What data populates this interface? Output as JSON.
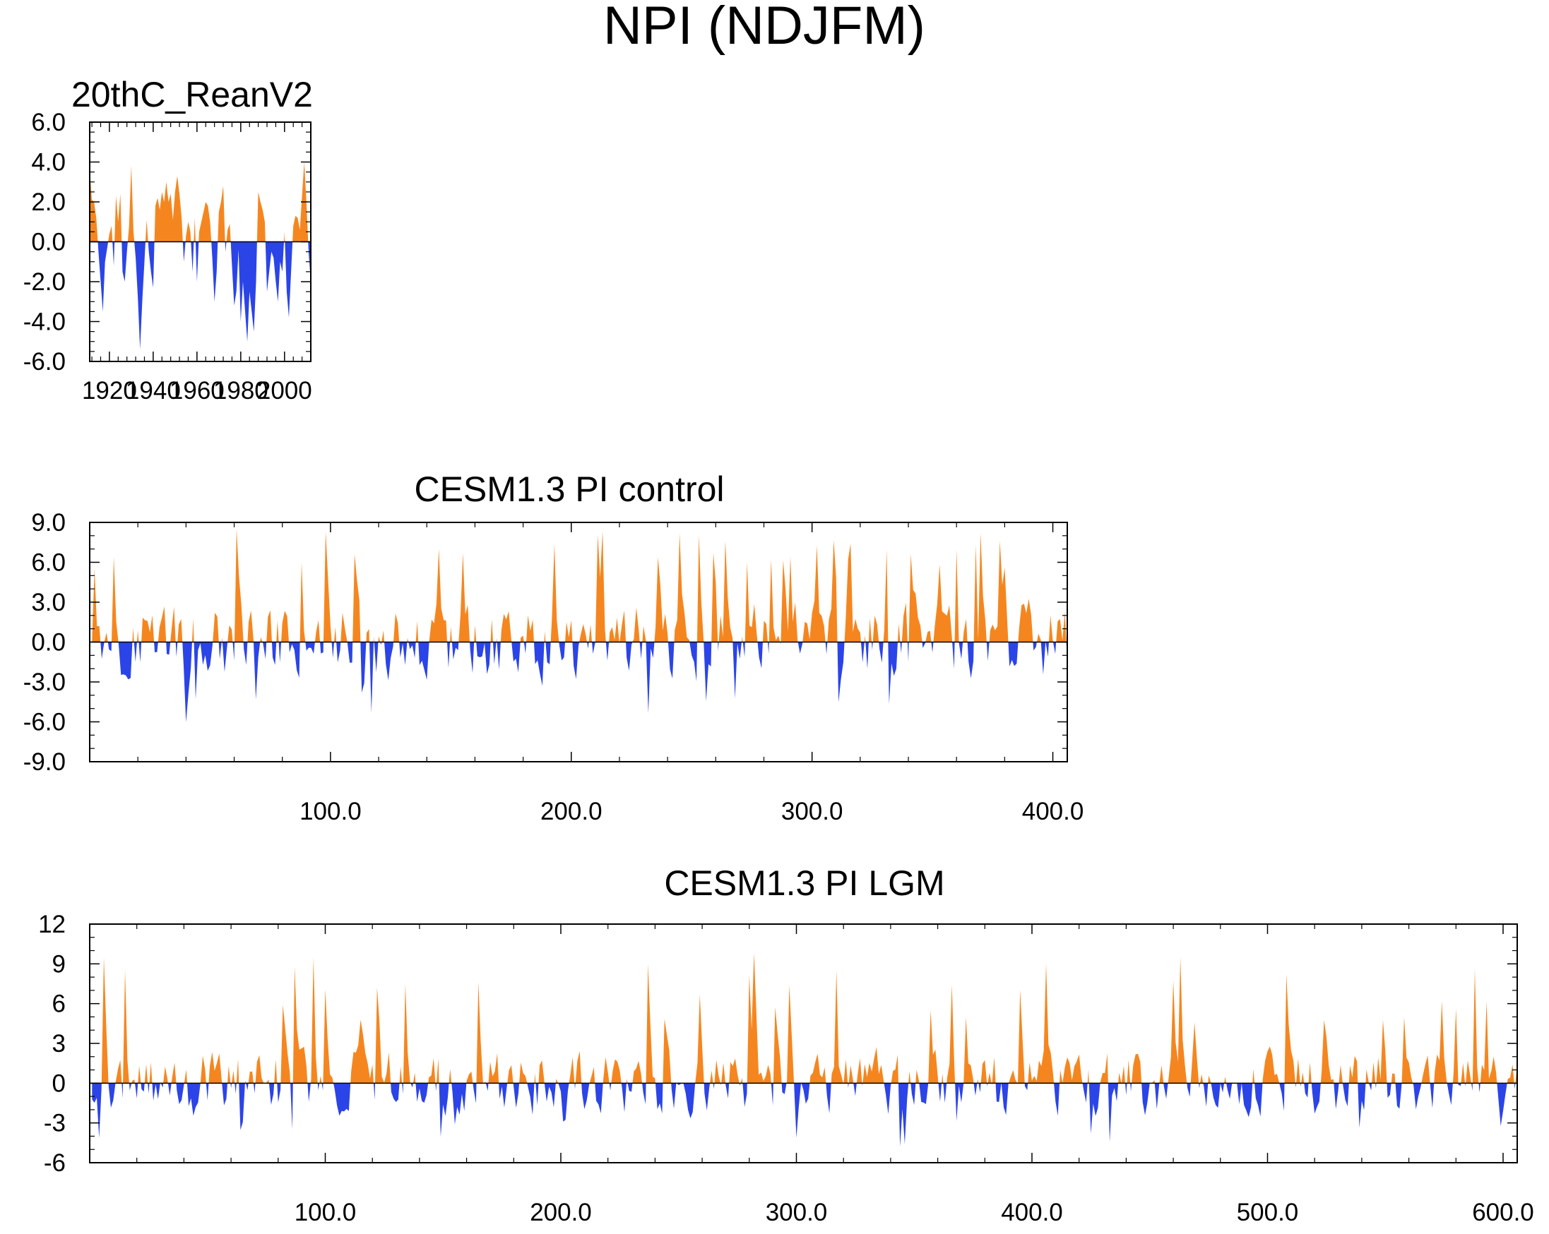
{
  "figure_title": "NPI (NDJFM)",
  "colors": {
    "positive": "#f5861f",
    "negative": "#2b44e8",
    "axis": "#000000",
    "background": "#ffffff"
  },
  "chart_data": [
    {
      "type": "area",
      "title": "20thC_ReanV2",
      "xlabel": "",
      "ylabel": "",
      "x_range": [
        1911,
        2012
      ],
      "y_range": [
        -6,
        6
      ],
      "y_ticks": [
        -6,
        -4,
        -2,
        0,
        2,
        4,
        6
      ],
      "y_tick_labels": [
        "-6.0",
        "-4.0",
        "-2.0",
        "0.0",
        "2.0",
        "4.0",
        "6.0"
      ],
      "x_ticks": [
        1920,
        1940,
        1960,
        1980,
        2000
      ],
      "x_tick_labels": [
        "1920",
        "1940",
        "1960",
        "1980",
        "2000"
      ],
      "fill_above_zero": "positive",
      "fill_below_zero": "negative",
      "x_start": 1911,
      "x_step": 1,
      "values": [
        3.6,
        2.1,
        2.0,
        1.2,
        -0.5,
        -2.0,
        -3.5,
        -1.0,
        -0.3,
        0.4,
        0.8,
        -1.2,
        2.3,
        1.0,
        2.4,
        -1.5,
        -2.0,
        -0.5,
        0.8,
        3.8,
        0.5,
        -0.8,
        -2.8,
        -5.4,
        -3.0,
        -1.0,
        1.1,
        -0.5,
        -1.5,
        -2.3,
        1.8,
        2.2,
        1.6,
        2.5,
        2.0,
        3.0,
        2.0,
        2.4,
        1.1,
        2.5,
        3.3,
        2.4,
        1.2,
        -1.0,
        0.3,
        1.0,
        0.5,
        -1.5,
        1.2,
        -2.0,
        0.5,
        1.0,
        1.5,
        2.0,
        1.8,
        1.0,
        -0.8,
        -3.0,
        -1.5,
        1.5,
        2.0,
        2.8,
        -0.5,
        0.6,
        0.9,
        -1.2,
        -3.2,
        -2.5,
        -0.4,
        -4.0,
        -2.0,
        -3.5,
        -5.0,
        -2.5,
        -3.5,
        -4.5,
        -2.0,
        2.5,
        2.0,
        1.6,
        1.0,
        -2.5,
        -1.5,
        -0.5,
        -0.8,
        -2.0,
        -3.0,
        -1.0,
        -1.5,
        0.5,
        -2.5,
        -3.8,
        -1.5,
        0.8,
        1.3,
        1.2,
        0.6,
        2.3,
        4.0,
        2.0,
        -0.5,
        -2.0
      ]
    },
    {
      "type": "area",
      "title": "CESM1.3 PI control",
      "xlabel": "",
      "ylabel": "",
      "x_range": [
        0,
        406
      ],
      "y_range": [
        -9,
        9
      ],
      "y_ticks": [
        -9,
        -6,
        -3,
        0,
        3,
        6,
        9
      ],
      "y_tick_labels": [
        "-9.0",
        "-6.0",
        "-3.0",
        "0.0",
        "3.0",
        "6.0",
        "9.0"
      ],
      "x_ticks": [
        100,
        200,
        300,
        400
      ],
      "x_tick_labels": [
        "100.0",
        "200.0",
        "300.0",
        "400.0"
      ],
      "fill_above_zero": "positive",
      "fill_below_zero": "negative",
      "generated_series": {
        "length": 406,
        "seed": 13,
        "amplitude": 1.8,
        "peak_min": 5.5,
        "peak_max": 8.6,
        "trough_min": -6.6
      }
    },
    {
      "type": "area",
      "title": "CESM1.3 PI LGM",
      "xlabel": "",
      "ylabel": "",
      "x_range": [
        0,
        606
      ],
      "y_range": [
        -6,
        12
      ],
      "y_ticks": [
        -6,
        -3,
        0,
        3,
        6,
        9,
        12
      ],
      "y_tick_labels": [
        "-6",
        "-3",
        "0",
        "3",
        "6",
        "9",
        "12"
      ],
      "x_ticks": [
        100,
        200,
        300,
        400,
        500,
        600
      ],
      "x_tick_labels": [
        "100.0",
        "200.0",
        "300.0",
        "400.0",
        "500.0",
        "600.0"
      ],
      "fill_above_zero": "positive",
      "fill_below_zero": "negative",
      "generated_series": {
        "length": 606,
        "seed": 29,
        "amplitude": 1.5,
        "peak_min": 4.5,
        "peak_max": 9.9,
        "trough_min": -5.0
      }
    }
  ]
}
